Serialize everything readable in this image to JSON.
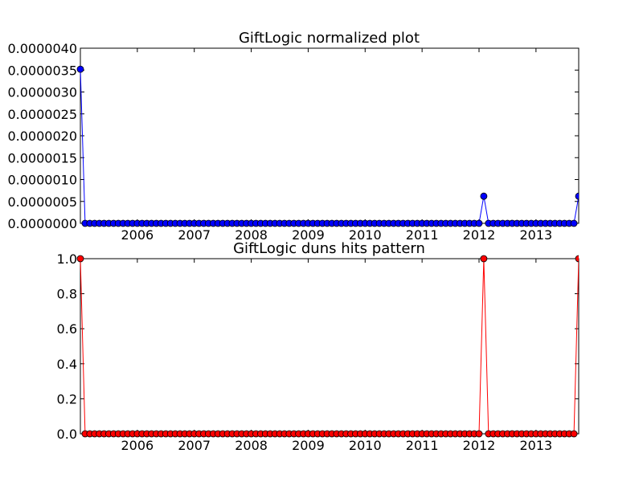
{
  "chart_data": [
    {
      "type": "line",
      "title": "GiftLogic normalized plot",
      "xlabel": "",
      "ylabel": "",
      "color": "#0000ff",
      "marker_color": "#0000ff",
      "ylim": [
        0,
        4e-06
      ],
      "yticks": [
        "0.0000000",
        "0.0000005",
        "0.0000010",
        "0.0000015",
        "0.0000020",
        "0.0000025",
        "0.0000030",
        "0.0000035",
        "0.0000040"
      ],
      "yticks_values": [
        0,
        5e-07,
        1e-06,
        1.5e-06,
        2e-06,
        2.5e-06,
        3e-06,
        3.5e-06,
        4e-06
      ],
      "x_start": "2005-01",
      "x_end": "2013-10",
      "xticks": [
        "2006",
        "2007",
        "2008",
        "2009",
        "2010",
        "2011",
        "2012",
        "2013"
      ],
      "points": [
        {
          "x": "2005-01",
          "y": 3.52e-06
        },
        {
          "x": "2012-02",
          "y": 6.2e-07
        },
        {
          "x": "2013-10",
          "y": 6.2e-07
        }
      ],
      "baseline_y": 0
    },
    {
      "type": "line",
      "title": "GiftLogic duns hits pattern",
      "xlabel": "",
      "ylabel": "",
      "color": "#ff0000",
      "marker_color": "#ff0000",
      "ylim": [
        0,
        1
      ],
      "yticks": [
        "0.0",
        "0.2",
        "0.4",
        "0.6",
        "0.8",
        "1.0"
      ],
      "yticks_values": [
        0,
        0.2,
        0.4,
        0.6,
        0.8,
        1.0
      ],
      "x_start": "2005-01",
      "x_end": "2013-10",
      "xticks": [
        "2006",
        "2007",
        "2008",
        "2009",
        "2010",
        "2011",
        "2012",
        "2013"
      ],
      "points": [
        {
          "x": "2005-01",
          "y": 1
        },
        {
          "x": "2012-02",
          "y": 1
        },
        {
          "x": "2013-10",
          "y": 1
        }
      ],
      "baseline_y": 0
    }
  ]
}
